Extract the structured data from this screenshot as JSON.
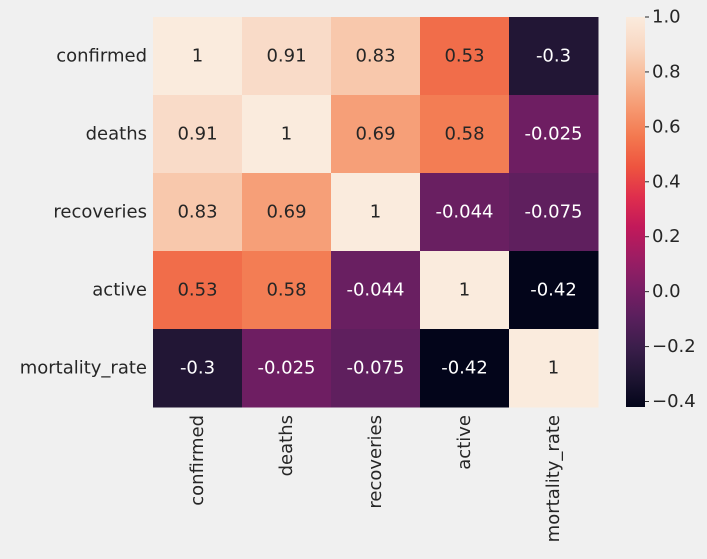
{
  "chart_data": {
    "type": "heatmap",
    "title": "",
    "xlabel": "",
    "ylabel": "",
    "x_categories": [
      "confirmed",
      "deaths",
      "recoveries",
      "active",
      "mortality_rate"
    ],
    "y_categories": [
      "confirmed",
      "deaths",
      "recoveries",
      "active",
      "mortality_rate"
    ],
    "values": [
      [
        1,
        0.91,
        0.83,
        0.53,
        -0.3
      ],
      [
        0.91,
        1,
        0.69,
        0.58,
        -0.025
      ],
      [
        0.83,
        0.69,
        1,
        -0.044,
        -0.075
      ],
      [
        0.53,
        0.58,
        -0.044,
        1,
        -0.42
      ],
      [
        -0.3,
        -0.025,
        -0.075,
        -0.42,
        1
      ]
    ],
    "cell_labels": [
      [
        "1",
        "0.91",
        "0.83",
        "0.53",
        "-0.3"
      ],
      [
        "0.91",
        "1",
        "0.69",
        "0.58",
        "-0.025"
      ],
      [
        "0.83",
        "0.69",
        "1",
        "-0.044",
        "-0.075"
      ],
      [
        "0.53",
        "0.58",
        "-0.044",
        "1",
        "-0.42"
      ],
      [
        "-0.3",
        "-0.025",
        "-0.075",
        "-0.42",
        "1"
      ]
    ],
    "colormap": "rocket",
    "vmin": -0.42,
    "vmax": 1.0,
    "colorbar": {
      "position": "right",
      "ticks": [
        1.0,
        0.8,
        0.6,
        0.4,
        0.2,
        0.0,
        -0.2,
        -0.4
      ],
      "tick_labels": [
        "1.0",
        "0.8",
        "0.6",
        "0.4",
        "0.2",
        "0.0",
        "−0.2",
        "−0.4"
      ]
    },
    "grid": false
  },
  "colors": {
    "background": "#f0f0f0",
    "text": "#262626",
    "label_on_light": "#262626",
    "label_on_dark": "#ffffff",
    "colormap_stops": [
      "#03051a",
      "#1f1533",
      "#3b1e4b",
      "#5a1f5d",
      "#7b1e65",
      "#9e1d63",
      "#c2195a",
      "#df2e4d",
      "#ee543f",
      "#f3784f",
      "#f69a72",
      "#f7bb99",
      "#f9d8c3",
      "#faebdd"
    ]
  }
}
